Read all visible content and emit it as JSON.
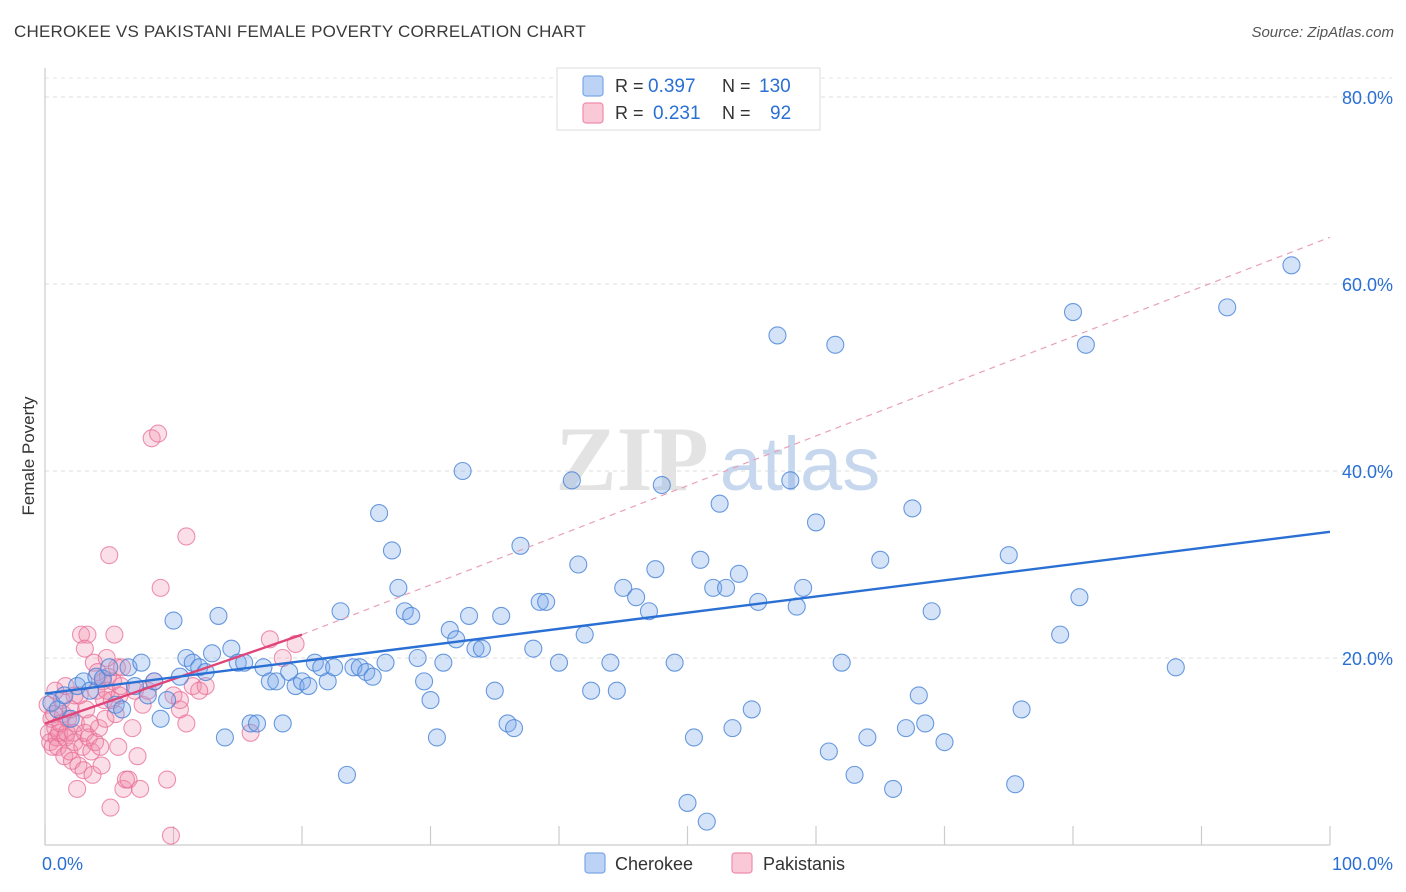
{
  "title": "CHEROKEE VS PAKISTANI FEMALE POVERTY CORRELATION CHART",
  "source": "Source: ZipAtlas.com",
  "watermark": {
    "zip": "ZIP",
    "atlas": "atlas"
  },
  "legend_top": [
    {
      "r_label": "R =",
      "r_value": "0.397",
      "n_label": "N =",
      "n_value": "130",
      "color": "#7ba7e8"
    },
    {
      "r_label": "R =",
      "r_value": "0.231",
      "n_label": "N =",
      "n_value": "92",
      "color": "#f08cab"
    }
  ],
  "legend_bottom": [
    "Cherokee",
    "Pakistanis"
  ],
  "chart_data": {
    "type": "scatter",
    "title": "CHEROKEE VS PAKISTANI FEMALE POVERTY CORRELATION CHART",
    "xlabel": "",
    "ylabel": "Female Poverty",
    "xlim": [
      0,
      100
    ],
    "ylim": [
      0,
      80
    ],
    "x_tick_labels": [
      "0.0%",
      "100.0%"
    ],
    "y_tick_labels": [
      "20.0%",
      "40.0%",
      "60.0%",
      "80.0%"
    ],
    "y_ticks": [
      20,
      40,
      60,
      80
    ],
    "grid": true,
    "series": [
      {
        "name": "Cherokee",
        "color": "#7ba7e8",
        "line_color": "#2a6fd3",
        "trend": {
          "x": [
            0,
            100
          ],
          "y": [
            16.2,
            33.5
          ]
        },
        "points": [
          [
            0.5,
            15.2
          ],
          [
            1,
            14.5
          ],
          [
            1.5,
            16
          ],
          [
            2,
            13.5
          ],
          [
            2.5,
            17
          ],
          [
            3,
            17.5
          ],
          [
            3.5,
            16.5
          ],
          [
            4,
            18
          ],
          [
            4.5,
            17.8
          ],
          [
            5,
            19
          ],
          [
            5.5,
            15
          ],
          [
            6,
            14.5
          ],
          [
            6.5,
            19
          ],
          [
            7,
            17
          ],
          [
            7.5,
            19.5
          ],
          [
            8,
            16
          ],
          [
            8.5,
            17.5
          ],
          [
            9,
            13.5
          ],
          [
            9.5,
            15.5
          ],
          [
            10,
            24
          ],
          [
            10.5,
            18
          ],
          [
            11,
            20
          ],
          [
            11.5,
            19.5
          ],
          [
            12,
            19
          ],
          [
            12.5,
            18.5
          ],
          [
            13,
            20.5
          ],
          [
            13.5,
            24.5
          ],
          [
            14,
            11.5
          ],
          [
            14.5,
            21
          ],
          [
            15,
            19.5
          ],
          [
            15.5,
            19.5
          ],
          [
            16,
            13
          ],
          [
            16.5,
            13
          ],
          [
            17,
            19
          ],
          [
            17.5,
            17.5
          ],
          [
            18,
            17.5
          ],
          [
            18.5,
            13
          ],
          [
            19,
            18.5
          ],
          [
            19.5,
            17
          ],
          [
            20,
            17.5
          ],
          [
            20.5,
            17
          ],
          [
            21,
            19.5
          ],
          [
            21.5,
            19
          ],
          [
            22,
            17.5
          ],
          [
            22.5,
            19
          ],
          [
            23,
            25
          ],
          [
            23.5,
            7.5
          ],
          [
            24,
            19
          ],
          [
            24.5,
            19
          ],
          [
            25,
            18.5
          ],
          [
            25.5,
            18
          ],
          [
            26,
            35.5
          ],
          [
            26.5,
            19.5
          ],
          [
            27,
            31.5
          ],
          [
            27.5,
            27.5
          ],
          [
            28,
            25
          ],
          [
            28.5,
            24.5
          ],
          [
            29,
            20
          ],
          [
            29.5,
            17.5
          ],
          [
            30,
            15.5
          ],
          [
            30.5,
            11.5
          ],
          [
            31,
            19.5
          ],
          [
            31.5,
            23
          ],
          [
            32,
            22
          ],
          [
            32.5,
            40
          ],
          [
            33,
            24.5
          ],
          [
            33.5,
            21
          ],
          [
            34,
            21
          ],
          [
            35,
            16.5
          ],
          [
            35.5,
            24.5
          ],
          [
            36,
            13
          ],
          [
            36.5,
            12.5
          ],
          [
            37,
            32
          ],
          [
            38,
            21
          ],
          [
            38.5,
            26
          ],
          [
            39,
            26
          ],
          [
            40,
            19.5
          ],
          [
            41,
            39
          ],
          [
            41.5,
            30
          ],
          [
            42,
            22.5
          ],
          [
            42.5,
            16.5
          ],
          [
            44,
            19.5
          ],
          [
            44.5,
            16.5
          ],
          [
            45,
            27.5
          ],
          [
            46,
            26.5
          ],
          [
            47,
            25
          ],
          [
            47.5,
            29.5
          ],
          [
            48,
            38.5
          ],
          [
            49,
            19.5
          ],
          [
            50,
            4.5
          ],
          [
            50.5,
            11.5
          ],
          [
            51,
            30.5
          ],
          [
            51.5,
            2.5
          ],
          [
            52,
            27.5
          ],
          [
            52.5,
            36.5
          ],
          [
            53,
            27.5
          ],
          [
            53.5,
            12.5
          ],
          [
            54,
            29
          ],
          [
            55,
            14.5
          ],
          [
            55.5,
            26
          ],
          [
            57,
            54.5
          ],
          [
            58,
            39
          ],
          [
            58.5,
            25.5
          ],
          [
            59,
            27.5
          ],
          [
            60,
            34.5
          ],
          [
            61,
            10
          ],
          [
            61.5,
            53.5
          ],
          [
            62,
            19.5
          ],
          [
            63,
            7.5
          ],
          [
            64,
            11.5
          ],
          [
            65,
            30.5
          ],
          [
            66,
            6
          ],
          [
            67,
            12.5
          ],
          [
            67.5,
            36
          ],
          [
            68,
            16
          ],
          [
            68.5,
            13
          ],
          [
            69,
            25
          ],
          [
            70,
            11
          ],
          [
            75,
            31
          ],
          [
            75.5,
            6.5
          ],
          [
            76,
            14.5
          ],
          [
            79,
            22.5
          ],
          [
            80,
            57
          ],
          [
            80.5,
            26.5
          ],
          [
            81,
            53.5
          ],
          [
            88,
            19
          ],
          [
            92,
            57.5
          ],
          [
            97,
            62
          ]
        ]
      },
      {
        "name": "Pakistanis",
        "color": "#f08cab",
        "line_color": "#e0457a",
        "trend": {
          "x": [
            0,
            20
          ],
          "y": [
            13.0,
            22.5
          ]
        },
        "trend_extension": {
          "x": [
            20,
            100
          ],
          "y": [
            22.5,
            65
          ]
        },
        "points": [
          [
            0.2,
            15
          ],
          [
            0.3,
            12
          ],
          [
            0.4,
            11
          ],
          [
            0.5,
            13.5
          ],
          [
            0.6,
            10.5
          ],
          [
            0.7,
            14
          ],
          [
            0.8,
            12.5
          ],
          [
            0.9,
            11.5
          ],
          [
            1,
            10.5
          ],
          [
            1.1,
            12
          ],
          [
            1.2,
            13
          ],
          [
            1.3,
            15.5
          ],
          [
            1.4,
            14
          ],
          [
            1.5,
            9.5
          ],
          [
            1.6,
            11.5
          ],
          [
            1.7,
            12
          ],
          [
            1.8,
            13.5
          ],
          [
            1.9,
            10
          ],
          [
            2,
            14.5
          ],
          [
            2.1,
            9
          ],
          [
            2.2,
            12
          ],
          [
            2.3,
            11
          ],
          [
            2.4,
            13
          ],
          [
            2.5,
            6
          ],
          [
            2.6,
            8.5
          ],
          [
            2.7,
            16
          ],
          [
            2.8,
            22.5
          ],
          [
            2.9,
            10.5
          ],
          [
            3,
            8
          ],
          [
            3.1,
            12
          ],
          [
            3.2,
            14.5
          ],
          [
            3.3,
            22.5
          ],
          [
            3.4,
            11.5
          ],
          [
            3.5,
            13
          ],
          [
            3.6,
            10
          ],
          [
            3.7,
            7.5
          ],
          [
            3.8,
            19.5
          ],
          [
            3.9,
            11
          ],
          [
            4,
            16.5
          ],
          [
            4.1,
            18.5
          ],
          [
            4.2,
            12.5
          ],
          [
            4.3,
            10.5
          ],
          [
            4.4,
            8.5
          ],
          [
            4.5,
            17.5
          ],
          [
            4.6,
            15.5
          ],
          [
            4.7,
            13.5
          ],
          [
            4.8,
            16.5
          ],
          [
            4.9,
            18
          ],
          [
            5,
            31
          ],
          [
            5.1,
            4
          ],
          [
            5.2,
            15.5
          ],
          [
            5.3,
            17.5
          ],
          [
            5.4,
            22.5
          ],
          [
            5.5,
            14
          ],
          [
            5.6,
            19
          ],
          [
            5.7,
            10.5
          ],
          [
            5.8,
            16
          ],
          [
            5.9,
            17
          ],
          [
            6,
            19
          ],
          [
            6.1,
            6
          ],
          [
            6.3,
            7
          ],
          [
            6.5,
            7
          ],
          [
            6.8,
            12.5
          ],
          [
            7,
            16.5
          ],
          [
            7.2,
            9.5
          ],
          [
            7.4,
            6
          ],
          [
            7.6,
            15
          ],
          [
            8,
            16.5
          ],
          [
            8.5,
            17.5
          ],
          [
            9,
            27.5
          ],
          [
            9.5,
            7
          ],
          [
            10,
            16
          ],
          [
            10.5,
            14.5
          ],
          [
            11,
            33
          ],
          [
            8.3,
            43.5
          ],
          [
            8.8,
            44
          ],
          [
            9.8,
            1
          ],
          [
            10.5,
            15.5
          ],
          [
            11,
            13
          ],
          [
            11.5,
            17
          ],
          [
            12.5,
            17
          ],
          [
            12,
            16.5
          ],
          [
            16,
            12
          ],
          [
            17.5,
            22
          ],
          [
            18.5,
            20
          ],
          [
            19.5,
            21.5
          ],
          [
            1.6,
            17
          ],
          [
            2.3,
            16
          ],
          [
            0.8,
            16.5
          ],
          [
            3.1,
            21
          ],
          [
            4.8,
            20
          ]
        ]
      }
    ]
  }
}
